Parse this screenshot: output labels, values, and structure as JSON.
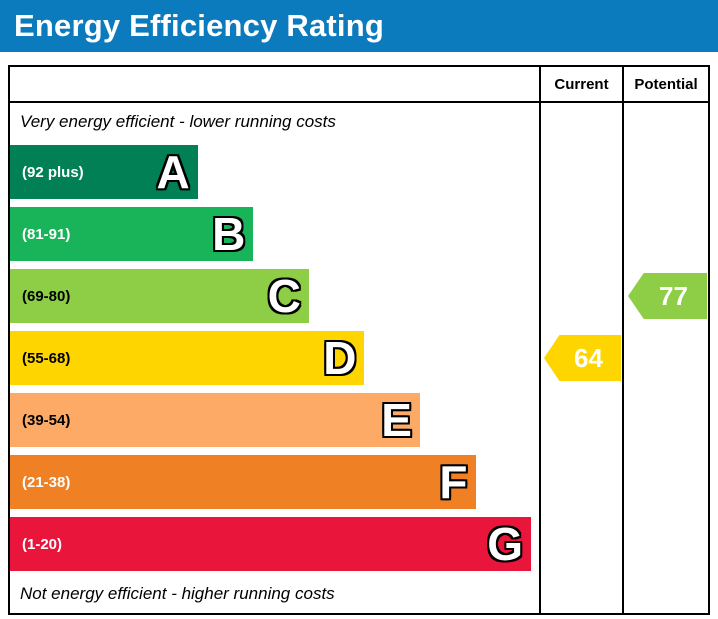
{
  "header": {
    "title": "Energy Efficiency Rating",
    "bg_color": "#0c7bbd",
    "text_color": "#ffffff"
  },
  "columns": {
    "current": "Current",
    "potential": "Potential"
  },
  "captions": {
    "top": "Very energy efficient - lower running costs",
    "bottom": "Not energy efficient - higher running costs"
  },
  "bands": [
    {
      "letter": "A",
      "range": "(92 plus)",
      "color": "#008054",
      "label_color": "#ffffff"
    },
    {
      "letter": "B",
      "range": "(81-91)",
      "color": "#19b459",
      "label_color": "#ffffff"
    },
    {
      "letter": "C",
      "range": "(69-80)",
      "color": "#8dce46",
      "label_color": "#000000"
    },
    {
      "letter": "D",
      "range": "(55-68)",
      "color": "#ffd500",
      "label_color": "#000000"
    },
    {
      "letter": "E",
      "range": "(39-54)",
      "color": "#fcaa65",
      "label_color": "#000000"
    },
    {
      "letter": "F",
      "range": "(21-38)",
      "color": "#ef8023",
      "label_color": "#ffffff"
    },
    {
      "letter": "G",
      "range": "(1-20)",
      "color": "#e9153b",
      "label_color": "#ffffff"
    }
  ],
  "ratings": {
    "current": {
      "value": "64",
      "band": "D",
      "color": "#ffd500",
      "text_color": "#ffffff"
    },
    "potential": {
      "value": "77",
      "band": "C",
      "color": "#8dce46",
      "text_color": "#ffffff"
    }
  },
  "chart_data": {
    "type": "bar",
    "title": "Energy Efficiency Rating",
    "categories": [
      "A (92 plus)",
      "B (81-91)",
      "C (69-80)",
      "D (55-68)",
      "E (39-54)",
      "F (21-38)",
      "G (1-20)"
    ],
    "band_colors": [
      "#008054",
      "#19b459",
      "#8dce46",
      "#ffd500",
      "#fcaa65",
      "#ef8023",
      "#e9153b"
    ],
    "current_rating": 64,
    "current_band": "D",
    "potential_rating": 77,
    "potential_band": "C",
    "scale_range": [
      1,
      100
    ],
    "annotations": [
      "Very energy efficient - lower running costs",
      "Not energy efficient - higher running costs"
    ],
    "legend_position": "top-right-columns",
    "grid": false
  }
}
